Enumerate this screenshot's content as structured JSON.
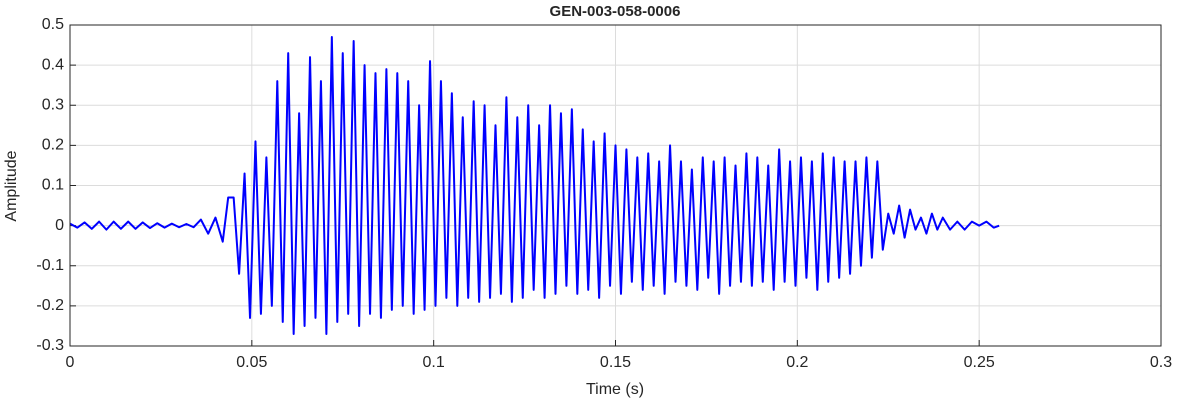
{
  "chart_data": {
    "type": "line",
    "title": "GEN-003-058-0006",
    "xlabel": "Time (s)",
    "ylabel": "Amplitude",
    "color": "#0000ff",
    "grid": true,
    "xlim": [
      0,
      0.3
    ],
    "ylim": [
      -0.3,
      0.5
    ],
    "xticks": [
      0,
      0.05,
      0.1,
      0.15,
      0.2,
      0.25,
      0.3
    ],
    "yticks": [
      -0.3,
      -0.2,
      -0.1,
      0,
      0.1,
      0.2,
      0.3,
      0.4,
      0.5
    ],
    "x": [
      0,
      0.002,
      0.004,
      0.006,
      0.008,
      0.01,
      0.012,
      0.014,
      0.016,
      0.018,
      0.02,
      0.022,
      0.024,
      0.026,
      0.028,
      0.03,
      0.032,
      0.034,
      0.036,
      0.038,
      0.04,
      0.042,
      0.0435,
      0.045,
      0.0465,
      0.048,
      0.0495,
      0.051,
      0.0525,
      0.054,
      0.0555,
      0.057,
      0.0585,
      0.06,
      0.0615,
      0.063,
      0.0645,
      0.066,
      0.0675,
      0.069,
      0.0705,
      0.072,
      0.0735,
      0.075,
      0.0765,
      0.078,
      0.0795,
      0.081,
      0.0825,
      0.084,
      0.0855,
      0.087,
      0.0885,
      0.09,
      0.0915,
      0.093,
      0.0945,
      0.096,
      0.0975,
      0.099,
      0.1005,
      0.102,
      0.1035,
      0.105,
      0.1065,
      0.108,
      0.1095,
      0.111,
      0.1125,
      0.114,
      0.1155,
      0.117,
      0.1185,
      0.12,
      0.1215,
      0.123,
      0.1245,
      0.126,
      0.1275,
      0.129,
      0.1305,
      0.132,
      0.1335,
      0.135,
      0.1365,
      0.138,
      0.1395,
      0.141,
      0.1425,
      0.144,
      0.1455,
      0.147,
      0.1485,
      0.15,
      0.1515,
      0.153,
      0.1545,
      0.156,
      0.1575,
      0.159,
      0.1605,
      0.162,
      0.1635,
      0.165,
      0.1665,
      0.168,
      0.1695,
      0.171,
      0.1725,
      0.174,
      0.1755,
      0.177,
      0.1785,
      0.18,
      0.1815,
      0.183,
      0.1845,
      0.186,
      0.1875,
      0.189,
      0.1905,
      0.192,
      0.1935,
      0.195,
      0.1965,
      0.198,
      0.1995,
      0.201,
      0.2025,
      0.204,
      0.2055,
      0.207,
      0.2085,
      0.21,
      0.2115,
      0.213,
      0.2145,
      0.216,
      0.2175,
      0.219,
      0.2205,
      0.222,
      0.2235,
      0.225,
      0.2265,
      0.228,
      0.2295,
      0.231,
      0.2325,
      0.234,
      0.2355,
      0.237,
      0.2385,
      0.24,
      0.242,
      0.244,
      0.246,
      0.248,
      0.25,
      0.252,
      0.254,
      0.2555
    ],
    "values": [
      0.005,
      -0.005,
      0.008,
      -0.008,
      0.01,
      -0.01,
      0.01,
      -0.008,
      0.01,
      -0.008,
      0.008,
      -0.006,
      0.006,
      -0.005,
      0.005,
      -0.004,
      0.004,
      -0.004,
      0.015,
      -0.02,
      0.02,
      -0.04,
      0.07,
      0.07,
      -0.12,
      0.13,
      -0.23,
      0.21,
      -0.22,
      0.17,
      -0.2,
      0.36,
      -0.24,
      0.43,
      -0.27,
      0.28,
      -0.25,
      0.42,
      -0.23,
      0.36,
      -0.27,
      0.47,
      -0.24,
      0.43,
      -0.22,
      0.46,
      -0.25,
      0.4,
      -0.22,
      0.38,
      -0.23,
      0.39,
      -0.21,
      0.38,
      -0.2,
      0.36,
      -0.22,
      0.3,
      -0.21,
      0.41,
      -0.2,
      0.36,
      -0.18,
      0.33,
      -0.2,
      0.27,
      -0.18,
      0.31,
      -0.19,
      0.3,
      -0.18,
      0.25,
      -0.17,
      0.32,
      -0.19,
      0.27,
      -0.18,
      0.3,
      -0.16,
      0.25,
      -0.18,
      0.3,
      -0.17,
      0.28,
      -0.15,
      0.29,
      -0.17,
      0.24,
      -0.16,
      0.21,
      -0.18,
      0.23,
      -0.15,
      0.2,
      -0.17,
      0.19,
      -0.14,
      0.17,
      -0.16,
      0.18,
      -0.15,
      0.16,
      -0.17,
      0.2,
      -0.14,
      0.16,
      -0.15,
      0.14,
      -0.16,
      0.17,
      -0.13,
      0.16,
      -0.17,
      0.17,
      -0.15,
      0.15,
      -0.14,
      0.18,
      -0.15,
      0.17,
      -0.14,
      0.15,
      -0.16,
      0.19,
      -0.14,
      0.16,
      -0.15,
      0.17,
      -0.13,
      0.16,
      -0.16,
      0.18,
      -0.14,
      0.17,
      -0.13,
      0.16,
      -0.12,
      0.16,
      -0.1,
      0.17,
      -0.08,
      0.16,
      -0.06,
      0.03,
      -0.02,
      0.05,
      -0.03,
      0.04,
      -0.01,
      0.02,
      -0.02,
      0.03,
      -0.01,
      0.02,
      -0.01,
      0.01,
      -0.01,
      0.01,
      0,
      0.01,
      -0.005,
      0
    ]
  }
}
